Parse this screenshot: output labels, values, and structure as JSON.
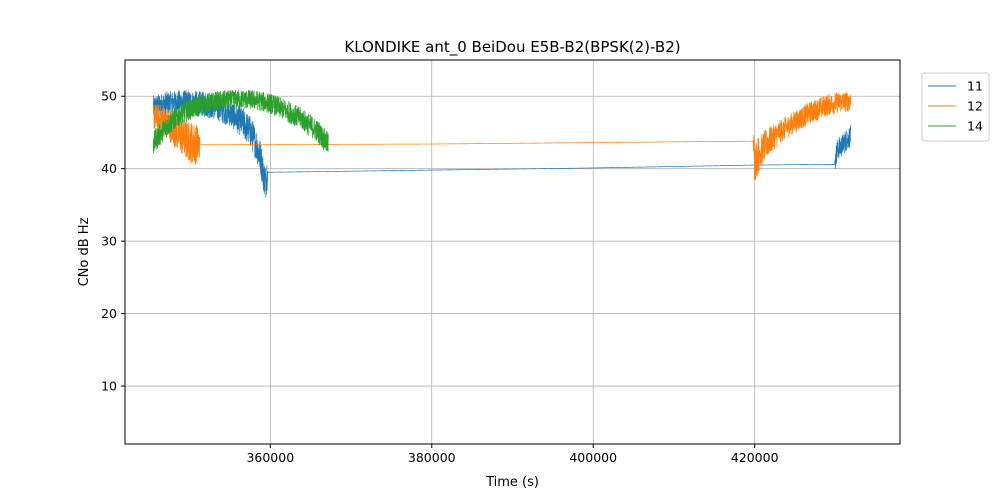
{
  "chart_data": {
    "type": "line",
    "title": "KLONDIKE ant_0 BeiDou E5B-B2(BPSK(2)-B2)",
    "xlabel": "Time (s)",
    "ylabel": "CNo dB Hz",
    "xlim": [
      342000,
      438000
    ],
    "ylim": [
      2,
      55
    ],
    "xticks": [
      360000,
      380000,
      400000,
      420000
    ],
    "yticks": [
      10,
      20,
      30,
      40,
      50
    ],
    "grid": true,
    "legend_position": "upper-right-outside",
    "series": [
      {
        "name": "11",
        "color": "#1f77b4",
        "points": [
          [
            345500,
            48.5
          ],
          [
            347000,
            49.0
          ],
          [
            349000,
            49.2
          ],
          [
            351000,
            49.0
          ],
          [
            353000,
            48.6
          ],
          [
            355000,
            47.6
          ],
          [
            356500,
            46.4
          ],
          [
            357500,
            45.2
          ],
          [
            358200,
            43.5
          ],
          [
            358800,
            41.5
          ],
          [
            359200,
            39.0
          ],
          [
            359400,
            38.0
          ],
          [
            359600,
            39.5
          ],
          [
            400000,
            40.1
          ],
          [
            420000,
            40.5
          ],
          [
            429900,
            40.6
          ],
          [
            430200,
            42.5
          ],
          [
            430800,
            43.2
          ],
          [
            431400,
            44.0
          ],
          [
            431900,
            44.5
          ]
        ],
        "noise_band": [
          [
            345500,
            1.6
          ],
          [
            355000,
            1.8
          ],
          [
            359600,
            2.5
          ],
          [
            359700,
            0.0
          ],
          [
            429900,
            0.0
          ],
          [
            430000,
            1.5
          ],
          [
            431900,
            1.5
          ]
        ]
      },
      {
        "name": "12",
        "color": "#ff7f0e",
        "points": [
          [
            345500,
            47.2
          ],
          [
            346500,
            46.8
          ],
          [
            347500,
            46.0
          ],
          [
            348500,
            45.0
          ],
          [
            349500,
            44.0
          ],
          [
            350500,
            43.5
          ],
          [
            351200,
            43.3
          ],
          [
            380000,
            43.4
          ],
          [
            400000,
            43.6
          ],
          [
            419800,
            43.8
          ],
          [
            420000,
            41.0
          ],
          [
            420500,
            42.0
          ],
          [
            421500,
            43.5
          ],
          [
            423000,
            45.0
          ],
          [
            425000,
            46.5
          ],
          [
            427000,
            47.8
          ],
          [
            429000,
            48.8
          ],
          [
            430500,
            49.2
          ],
          [
            431900,
            49.3
          ]
        ],
        "noise_band": [
          [
            345500,
            1.8
          ],
          [
            350500,
            3.0
          ],
          [
            351200,
            2.5
          ],
          [
            351300,
            0.0
          ],
          [
            419800,
            0.0
          ],
          [
            419900,
            3.0
          ],
          [
            421000,
            2.2
          ],
          [
            423000,
            1.6
          ],
          [
            431900,
            1.4
          ]
        ]
      },
      {
        "name": "14",
        "color": "#2ca02c",
        "points": [
          [
            345500,
            43.5
          ],
          [
            346500,
            45.0
          ],
          [
            348000,
            46.8
          ],
          [
            350000,
            48.2
          ],
          [
            352000,
            49.0
          ],
          [
            354000,
            49.4
          ],
          [
            356000,
            49.6
          ],
          [
            358000,
            49.5
          ],
          [
            360000,
            49.0
          ],
          [
            362000,
            48.0
          ],
          [
            364000,
            46.8
          ],
          [
            366000,
            45.0
          ],
          [
            367200,
            43.3
          ]
        ],
        "noise_band": [
          [
            345500,
            1.6
          ],
          [
            356000,
            1.3
          ],
          [
            367200,
            1.6
          ]
        ]
      }
    ]
  }
}
